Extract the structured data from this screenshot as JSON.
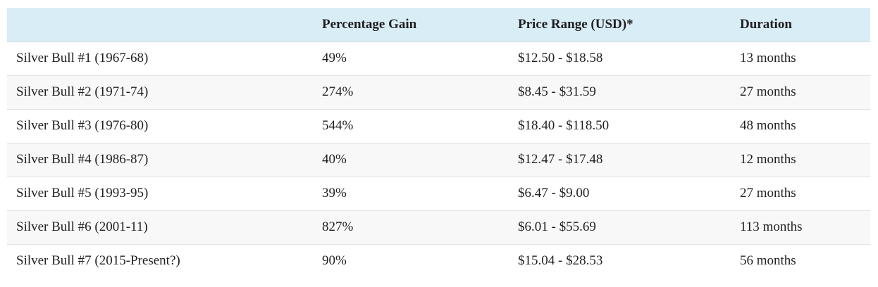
{
  "colors": {
    "header_bg": "#d9edf7",
    "alt_row_bg": "#f8f8f8",
    "border": "#e2e2e2",
    "header_border": "#d4dde2",
    "text": "#1f1f1f",
    "page_bg": "#ffffff"
  },
  "table": {
    "columns": [
      {
        "label": ""
      },
      {
        "label": "Percentage Gain"
      },
      {
        "label": "Price Range (USD)*"
      },
      {
        "label": "Duration"
      }
    ],
    "rows": [
      {
        "name": "Silver Bull #1 (1967-68)",
        "gain": "49%",
        "range": "$12.50 - $18.58",
        "duration": "13 months"
      },
      {
        "name": "Silver Bull #2 (1971-74)",
        "gain": "274%",
        "range": "$8.45 - $31.59",
        "duration": "27 months"
      },
      {
        "name": "Silver Bull #3 (1976-80)",
        "gain": "544%",
        "range": "$18.40 - $118.50",
        "duration": "48 months"
      },
      {
        "name": "Silver Bull #4 (1986-87)",
        "gain": "40%",
        "range": "$12.47 - $17.48",
        "duration": "12 months"
      },
      {
        "name": "Silver Bull #5 (1993-95)",
        "gain": "39%",
        "range": "$6.47 - $9.00",
        "duration": "27 months"
      },
      {
        "name": "Silver Bull #6 (2001-11)",
        "gain": "827%",
        "range": "$6.01 - $55.69",
        "duration": "113 months"
      },
      {
        "name": "Silver Bull #7 (2015-Present?)",
        "gain": "90%",
        "range": "$15.04 - $28.53",
        "duration": "56 months"
      }
    ]
  }
}
